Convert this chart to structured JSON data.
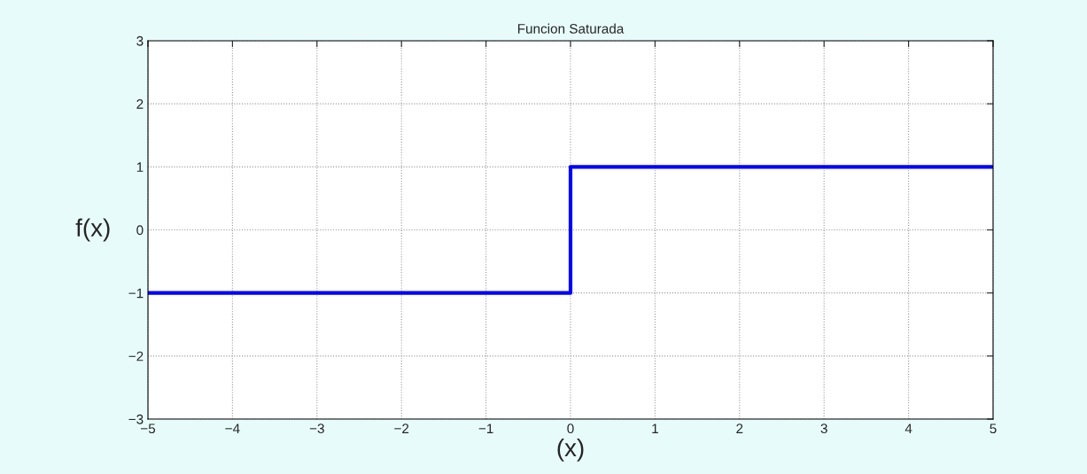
{
  "chart_data": {
    "type": "line",
    "title": "Funcion Saturada",
    "xlabel": "(x)",
    "ylabel": "f(x)",
    "series": [
      {
        "color": "#0000ff",
        "x": [
          -5,
          0,
          0,
          5
        ],
        "values": [
          -1,
          -1,
          1,
          1
        ]
      }
    ],
    "xlim": [
      -5,
      5
    ],
    "ylim": [
      -3,
      3
    ],
    "xticks": [
      -5,
      -4,
      -3,
      -2,
      -1,
      0,
      1,
      2,
      3,
      4,
      5
    ],
    "yticks": [
      -3,
      -2,
      -1,
      0,
      1,
      2,
      3
    ],
    "grid": true,
    "line_style": "solid",
    "legend": false
  }
}
